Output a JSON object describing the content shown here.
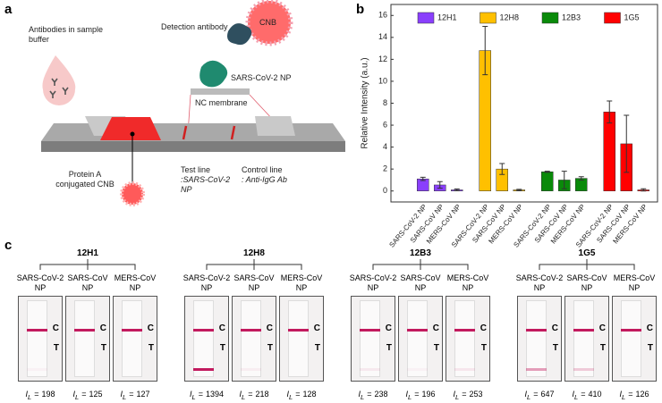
{
  "panel_a": {
    "label": "a",
    "sample_text": "Antibodies in sample buffer",
    "detection_text": "Detection antibody",
    "cnb_text": "CNB",
    "np_text": "SARS-CoV-2 NP",
    "membrane_text": "NC membrane",
    "test_line": "Test line",
    "test_line_target": ":SARS-CoV-2 NP",
    "control_line": "Control line",
    "control_line_target": ": Anti-IgG Ab",
    "protein_a_text": "Protein A conjugated CNB"
  },
  "chart_data": {
    "type": "bar",
    "label": "b",
    "y_label": "Relative Intensity (a.u.)",
    "categories": [
      "SARS-CoV-2 NP",
      "SARS-CoV NP",
      "MERS-CoV NP"
    ],
    "series": [
      {
        "name": "12H1",
        "color": "#8a3ffc",
        "values": [
          1.1,
          0.55,
          0.1
        ],
        "errors": [
          0.15,
          0.3,
          0.08
        ]
      },
      {
        "name": "12H8",
        "color": "#ffc000",
        "values": [
          12.8,
          2.0,
          0.1
        ],
        "errors": [
          2.2,
          0.5,
          0.05
        ]
      },
      {
        "name": "12B3",
        "color": "#0a8a0a",
        "values": [
          1.75,
          1.0,
          1.15
        ],
        "errors": [
          0.05,
          0.8,
          0.15
        ]
      },
      {
        "name": "1G5",
        "color": "#ff0000",
        "values": [
          7.2,
          4.3,
          0.1
        ],
        "errors": [
          1.0,
          2.6,
          0.1
        ]
      }
    ],
    "ylim": [
      -1,
      17
    ],
    "yticks": [
      0,
      2,
      4,
      6,
      8,
      10,
      12,
      14,
      16
    ],
    "legend": "top"
  },
  "panel_c": {
    "label": "c",
    "intensity_symbol": "I",
    "intensity_subscript": "L",
    "intensity_relation": "=",
    "control_mark": "C",
    "test_mark": "T",
    "groups": [
      {
        "name": "12H1",
        "strips": [
          {
            "label": "SARS-CoV-2 NP",
            "intensity": 198
          },
          {
            "label": "SARS-CoV NP",
            "intensity": 125
          },
          {
            "label": "MERS-CoV NP",
            "intensity": 127
          }
        ]
      },
      {
        "name": "12H8",
        "strips": [
          {
            "label": "SARS-CoV-2 NP",
            "intensity": 1394
          },
          {
            "label": "SARS-CoV NP",
            "intensity": 218
          },
          {
            "label": "MERS-CoV NP",
            "intensity": 128
          }
        ]
      },
      {
        "name": "12B3",
        "strips": [
          {
            "label": "SARS-CoV-2 NP",
            "intensity": 238
          },
          {
            "label": "SARS-CoV NP",
            "intensity": 196
          },
          {
            "label": "MERS-CoV NP",
            "intensity": 253
          }
        ]
      },
      {
        "name": "1G5",
        "strips": [
          {
            "label": "SARS-CoV-2 NP",
            "intensity": 647
          },
          {
            "label": "SARS-CoV NP",
            "intensity": 410
          },
          {
            "label": "MERS-CoV NP",
            "intensity": 126
          }
        ]
      }
    ]
  }
}
